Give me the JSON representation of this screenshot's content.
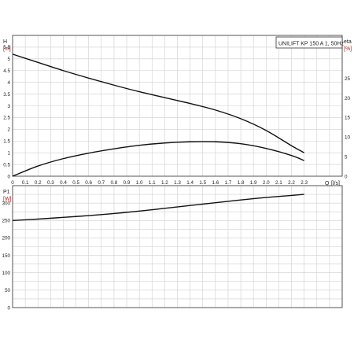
{
  "chart_data": [
    {
      "type": "line",
      "title": "UNILIFT KP 150 A 1, 50Hz",
      "left_axis": {
        "label_top": "H",
        "label_unit": "[m]",
        "ylim": [
          0,
          6
        ],
        "ticks": [
          0,
          0.5,
          1,
          1.5,
          2,
          2.5,
          3,
          3.5,
          4,
          4.5,
          5,
          5.5
        ]
      },
      "right_axis": {
        "label_top": "eta",
        "label_unit": "[%]",
        "ylim": [
          0,
          36
        ],
        "ticks": [
          0,
          5,
          10,
          15,
          20,
          25
        ]
      },
      "x_axis": {
        "label": "Q",
        "unit": "[l/s]",
        "xlim": [
          0,
          2.6
        ],
        "ticks": [
          "0",
          "0.1",
          "0.2",
          "0.3",
          "0.4",
          "0.5",
          "0.6",
          "0.7",
          "0.8",
          "0.9",
          "1.0",
          "1.1",
          "1.2",
          "1.3",
          "1.4",
          "1.5",
          "1.6",
          "1.7",
          "1.8",
          "1.9",
          "2.0",
          "2.1",
          "2.2",
          "2.3"
        ]
      },
      "grid": true,
      "series": [
        {
          "axis": "left",
          "color": "#111111",
          "x": [
            0,
            0.2,
            0.4,
            0.6,
            0.8,
            1.0,
            1.2,
            1.4,
            1.6,
            1.8,
            2.0,
            2.2,
            2.3
          ],
          "y": [
            5.2,
            4.85,
            4.5,
            4.18,
            3.88,
            3.6,
            3.35,
            3.1,
            2.82,
            2.45,
            1.95,
            1.3,
            1.0
          ]
        },
        {
          "axis": "right",
          "color": "#111111",
          "x": [
            0,
            0.2,
            0.4,
            0.6,
            0.8,
            1.0,
            1.2,
            1.4,
            1.6,
            1.8,
            2.0,
            2.2,
            2.3
          ],
          "y": [
            0,
            2.6,
            4.5,
            5.9,
            7.0,
            7.9,
            8.5,
            8.8,
            8.8,
            8.3,
            7.1,
            5.3,
            4.0
          ]
        }
      ]
    },
    {
      "type": "line",
      "left_axis": {
        "label_top": "P1",
        "label_unit": "[W]",
        "ylim": [
          0,
          350
        ],
        "ticks": [
          0,
          50,
          100,
          150,
          200,
          250,
          300
        ]
      },
      "x_axis": {
        "xlim": [
          0,
          2.6
        ]
      },
      "grid": true,
      "series": [
        {
          "axis": "left",
          "color": "#111111",
          "x": [
            0,
            0.2,
            0.4,
            0.6,
            0.8,
            1.0,
            1.2,
            1.4,
            1.6,
            1.8,
            2.0,
            2.2,
            2.3
          ],
          "y": [
            250,
            254,
            259,
            264,
            270,
            277,
            285,
            293,
            301,
            309,
            316,
            322,
            325
          ]
        }
      ]
    }
  ]
}
